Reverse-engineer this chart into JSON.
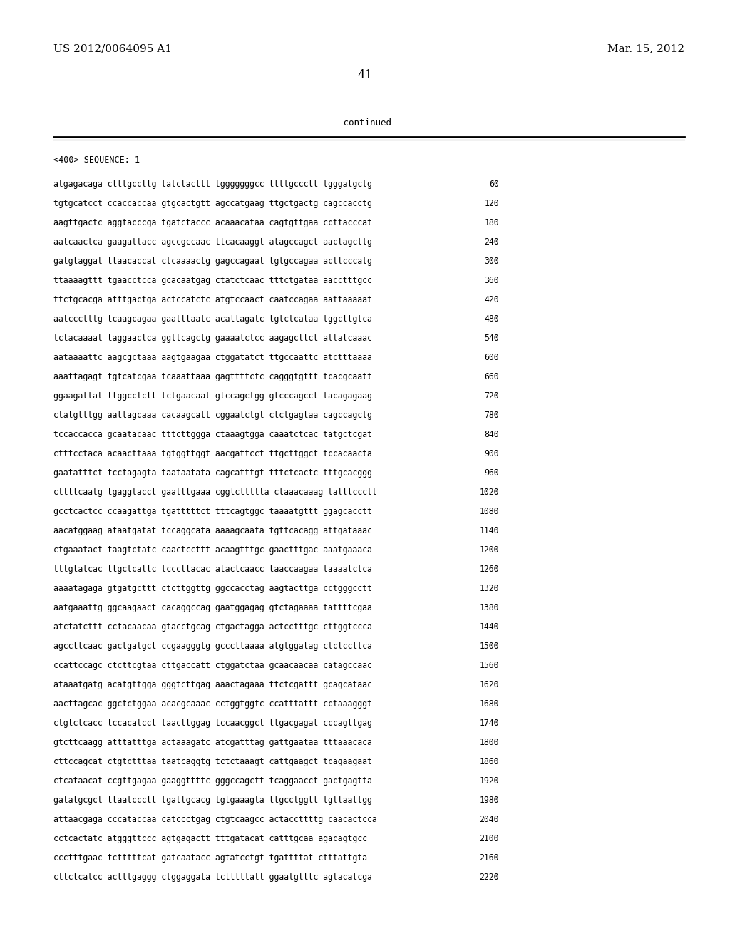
{
  "header_left": "US 2012/0064095 A1",
  "header_right": "Mar. 15, 2012",
  "page_number": "41",
  "continued_label": "-continued",
  "sequence_header": "<400> SEQUENCE: 1",
  "background_color": "#ffffff",
  "text_color": "#000000",
  "sequence_lines": [
    [
      "atgagacaga ctttgccttg tatctacttt tgggggggcc ttttgccctt tgggatgctg",
      "60"
    ],
    [
      "tgtgcatcct ccaccaccaa gtgcactgtt agccatgaag ttgctgactg cagccacctg",
      "120"
    ],
    [
      "aagttgactc aggtacccga tgatctaccc acaaacataa cagtgttgaa ccttacccat",
      "180"
    ],
    [
      "aatcaactca gaagattacc agccgccaac ttcacaaggt atagccagct aactagcttg",
      "240"
    ],
    [
      "gatgtaggat ttaacaccat ctcaaaactg gagccagaat tgtgccagaa acttcccatg",
      "300"
    ],
    [
      "ttaaaagttt tgaacctcca gcacaatgag ctatctcaac tttctgataa aacctttgcc",
      "360"
    ],
    [
      "ttctgcacga atttgactga actccatctc atgtccaact caatccagaa aattaaaaat",
      "420"
    ],
    [
      "aatccctttg tcaagcagaa gaatttaatc acattagatc tgtctcataa tggcttgtca",
      "480"
    ],
    [
      "tctacaaaat taggaactca ggttcagctg gaaaatctcc aagagcttct attatcaaac",
      "540"
    ],
    [
      "aataaaattc aagcgctaaa aagtgaagaa ctggatatct ttgccaattc atctttaaaa",
      "600"
    ],
    [
      "aaattagagt tgtcatcgaa tcaaattaaa gagttttctc cagggtgttt tcacgcaatt",
      "660"
    ],
    [
      "ggaagattat ttggcctctt tctgaacaat gtccagctgg gtcccagcct tacagagaag",
      "720"
    ],
    [
      "ctatgtttgg aattagcaaa cacaagcatt cggaatctgt ctctgagtaa cagccagctg",
      "780"
    ],
    [
      "tccaccacca gcaatacaac tttcttggga ctaaagtgga caaatctcac tatgctcgat",
      "840"
    ],
    [
      "ctttcctaca acaacttaaa tgtggttggt aacgattcct ttgcttggct tccacaacta",
      "900"
    ],
    [
      "gaatatttct tcctagagta taataatata cagcatttgt tttctcactc tttgcacggg",
      "960"
    ],
    [
      "cttttcaatg tgaggtacct gaatttgaaa cggtcttttta ctaaacaaag tatttccctt",
      "1020"
    ],
    [
      "gcctcactcc ccaagattga tgatttttct tttcagtggc taaaatgttt ggagcacctt",
      "1080"
    ],
    [
      "aacatggaag ataatgatat tccaggcata aaaagcaata tgttcacagg attgataaac",
      "1140"
    ],
    [
      "ctgaaatact taagtctatc caactccttt acaagtttgc gaactttgac aaatgaaaca",
      "1200"
    ],
    [
      "tttgtatcac ttgctcattc tcccttacac atactcaacc taaccaagaa taaaatctca",
      "1260"
    ],
    [
      "aaaatagaga gtgatgcttt ctcttggttg ggccacctag aagtacttga cctgggcctt",
      "1320"
    ],
    [
      "aatgaaattg ggcaagaact cacaggccag gaatggagag gtctagaaaa tattttcgaa",
      "1380"
    ],
    [
      "atctatcttt cctacaacaa gtacctgcag ctgactagga actcctttgc cttggtccca",
      "1440"
    ],
    [
      "agccttcaac gactgatgct ccgaagggtg gcccttaaaa atgtggatag ctctccttca",
      "1500"
    ],
    [
      "ccattccagc ctcttcgtaa cttgaccatt ctggatctaa gcaacaacaa catagccaac",
      "1560"
    ],
    [
      "ataaatgatg acatgttgga gggtcttgag aaactagaaa ttctcgattt gcagcataac",
      "1620"
    ],
    [
      "aacttagcac ggctctggaa acacgcaaac cctggtggtc ccatttattt cctaaagggt",
      "1680"
    ],
    [
      "ctgtctcacc tccacatcct taacttggag tccaacggct ttgacgagat cccagttgag",
      "1740"
    ],
    [
      "gtcttcaagg atttatttga actaaagatc atcgatttag gattgaataa tttaaacaca",
      "1800"
    ],
    [
      "cttccagcat ctgtctttaa taatcaggtg tctctaaagt cattgaagct tcagaagaat",
      "1860"
    ],
    [
      "ctcataacat ccgttgagaa gaaggttttc gggccagctt tcaggaacct gactgagtta",
      "1920"
    ],
    [
      "gatatgcgct ttaatccctt tgattgcacg tgtgaaagta ttgcctggtt tgttaattgg",
      "1980"
    ],
    [
      "attaacgaga cccataccaa catccctgag ctgtcaagcc actaccttttg caacactcca",
      "2040"
    ],
    [
      "cctcactatc atgggttccc agtgagactt tttgatacat catttgcaa agacagtgcc",
      "2100"
    ],
    [
      "ccctttgaac tctttttcat gatcaatacc agtatcctgt tgattttat ctttattgta",
      "2160"
    ],
    [
      "cttctcatcc actttgaggg ctggaggata tctttttatt ggaatgtttc agtacatcga",
      "2220"
    ]
  ]
}
